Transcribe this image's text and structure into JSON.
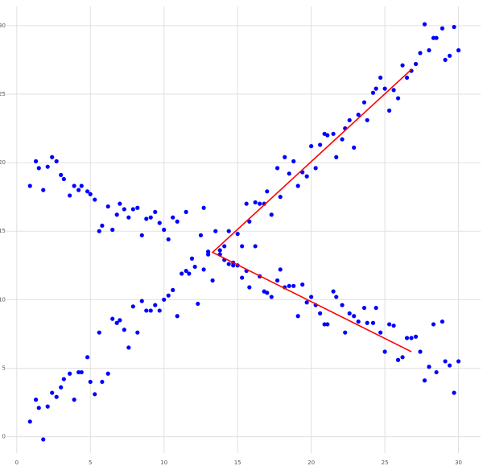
{
  "chart_data": {
    "type": "scatter",
    "xlim": [
      -0.7,
      31.5
    ],
    "ylim": [
      -1.2,
      31.4
    ],
    "xticks": [
      0,
      5,
      10,
      15,
      20,
      25,
      30
    ],
    "yticks": [
      0,
      5,
      10,
      15,
      20,
      25,
      30
    ],
    "grid": true,
    "series": [
      {
        "color": "#0000ff",
        "x": [
          0.9,
          1.3,
          1.5,
          1.8,
          2.1,
          2.4,
          2.7,
          3.0,
          3.2,
          3.6,
          3.9,
          4.2,
          4.4,
          4.8,
          5.0,
          5.3,
          5.6,
          5.8,
          6.2,
          6.5,
          6.8,
          7.0,
          7.3,
          7.6,
          7.9,
          8.2,
          8.5,
          8.8,
          9.1,
          9.4,
          9.7,
          10.0,
          10.3,
          10.6,
          10.9,
          11.2,
          11.5,
          11.7,
          11.9,
          12.1,
          12.3,
          12.5,
          12.7,
          13.0,
          13.3,
          13.5,
          13.8,
          14.1,
          14.4,
          14.7,
          15.0,
          15.3,
          15.6,
          15.8,
          16.2,
          16.5,
          16.8,
          17.0,
          17.3,
          17.7,
          17.9,
          18.2,
          18.5,
          18.8,
          19.1,
          19.4,
          19.7,
          20.0,
          20.3,
          20.6,
          20.9,
          21.1,
          21.5,
          21.7,
          22.1,
          22.3,
          22.6,
          22.9,
          23.2,
          23.6,
          23.8,
          24.2,
          24.4,
          24.7,
          25.0,
          25.3,
          25.6,
          25.9,
          26.2,
          26.5,
          26.8,
          27.1,
          27.4,
          27.7,
          28.0,
          28.3,
          28.5,
          28.9,
          29.1,
          29.4,
          29.7,
          30.0
        ],
        "values": [
          1.1,
          2.7,
          2.1,
          -0.2,
          2.2,
          3.2,
          2.9,
          3.6,
          4.2,
          4.6,
          2.7,
          4.7,
          4.7,
          5.8,
          4.0,
          3.1,
          7.6,
          4.0,
          4.6,
          8.6,
          8.3,
          8.5,
          7.8,
          6.5,
          9.5,
          7.6,
          9.9,
          9.2,
          9.2,
          9.6,
          9.2,
          10.0,
          10.3,
          10.7,
          8.8,
          11.9,
          12.1,
          11.9,
          13.0,
          12.4,
          9.7,
          14.7,
          12.2,
          13.3,
          11.4,
          15.0,
          13.6,
          13.9,
          15.0,
          12.5,
          14.8,
          13.9,
          17.0,
          15.7,
          17.1,
          17.0,
          17.0,
          17.9,
          16.2,
          19.6,
          17.5,
          20.4,
          19.2,
          20.1,
          18.3,
          19.3,
          19.0,
          21.2,
          19.6,
          21.3,
          22.1,
          22.0,
          22.1,
          20.4,
          21.7,
          22.5,
          23.1,
          21.1,
          23.5,
          24.4,
          23.1,
          25.1,
          25.4,
          26.2,
          25.4,
          23.8,
          25.3,
          24.7,
          27.1,
          26.2,
          26.7,
          27.2,
          28.0,
          30.1,
          28.2,
          29.1,
          29.1,
          29.8,
          27.5,
          27.8,
          29.9,
          28.2
        ]
      },
      {
        "color": "#0000ff",
        "x": [
          0.9,
          1.3,
          1.5,
          1.8,
          2.1,
          2.4,
          2.7,
          3.0,
          3.2,
          3.6,
          3.9,
          4.2,
          4.4,
          4.8,
          5.0,
          5.3,
          5.6,
          5.8,
          6.2,
          6.5,
          6.8,
          7.0,
          7.3,
          7.6,
          7.9,
          8.2,
          8.5,
          8.8,
          9.1,
          9.4,
          9.7,
          10.0,
          10.3,
          10.6,
          10.9,
          11.5,
          12.7,
          13.0,
          13.8,
          14.1,
          14.4,
          14.7,
          15.0,
          15.3,
          15.6,
          15.8,
          16.2,
          16.5,
          16.8,
          17.0,
          17.3,
          17.7,
          17.9,
          18.2,
          18.5,
          18.8,
          19.1,
          19.4,
          19.7,
          20.0,
          20.3,
          20.6,
          20.9,
          21.1,
          21.5,
          21.7,
          22.1,
          22.3,
          22.6,
          22.9,
          23.2,
          23.6,
          23.8,
          24.2,
          24.4,
          24.7,
          25.0,
          25.3,
          25.6,
          25.9,
          26.2,
          26.5,
          26.8,
          27.1,
          27.4,
          27.7,
          28.0,
          28.3,
          28.5,
          28.9,
          29.1,
          29.4,
          29.7,
          30.0
        ],
        "values": [
          18.3,
          20.1,
          19.6,
          18.0,
          19.7,
          20.4,
          20.1,
          19.1,
          18.8,
          17.6,
          18.3,
          18.0,
          18.3,
          17.9,
          17.7,
          17.3,
          15.0,
          15.4,
          16.8,
          15.1,
          16.2,
          17.0,
          16.6,
          16.0,
          16.6,
          16.7,
          14.7,
          15.9,
          16.0,
          16.4,
          15.6,
          15.1,
          14.4,
          16.0,
          15.7,
          16.4,
          16.7,
          13.5,
          13.3,
          12.9,
          12.6,
          12.7,
          12.5,
          11.6,
          12.1,
          10.9,
          13.9,
          11.7,
          10.6,
          10.5,
          10.2,
          11.4,
          12.2,
          10.9,
          11.0,
          11.0,
          8.8,
          11.1,
          9.8,
          10.2,
          9.6,
          9.0,
          8.2,
          8.2,
          10.6,
          10.2,
          9.6,
          7.6,
          9.0,
          8.8,
          8.4,
          9.4,
          8.3,
          8.3,
          9.4,
          7.6,
          6.2,
          8.2,
          8.1,
          5.6,
          5.8,
          7.2,
          7.2,
          7.3,
          6.2,
          4.1,
          5.1,
          8.2,
          4.7,
          8.4,
          5.5,
          5.2,
          3.2,
          5.5
        ]
      },
      {
        "type": "line",
        "color": "#ff0000",
        "x": [
          26.8,
          13.3,
          26.8
        ],
        "values": [
          26.8,
          13.45,
          6.2
        ]
      }
    ]
  }
}
